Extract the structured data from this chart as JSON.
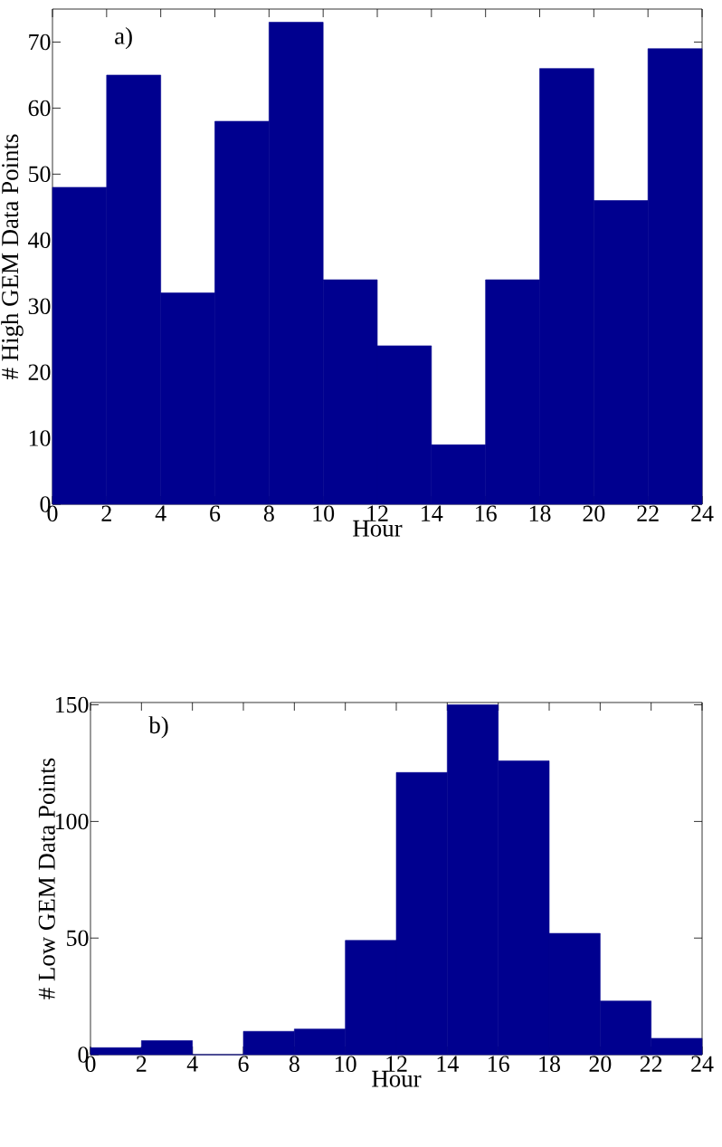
{
  "chart_data": [
    {
      "type": "histogram",
      "xlabel": "Hour",
      "ylabel": "# High GEM Data Points",
      "annotations": [
        "a)"
      ],
      "color": "#00008f",
      "bins": [
        0,
        2,
        4,
        6,
        8,
        10,
        12,
        14,
        16,
        18,
        20,
        22,
        24
      ],
      "values": [
        48,
        65,
        32,
        58,
        73,
        34,
        24,
        9,
        34,
        66,
        46,
        69
      ],
      "xlim": [
        0,
        24
      ],
      "xticks": [
        0,
        2,
        4,
        6,
        8,
        10,
        12,
        14,
        16,
        18,
        20,
        22,
        24
      ],
      "ylim": [
        0,
        75
      ],
      "yticks": [
        0,
        10,
        20,
        30,
        40,
        50,
        60,
        70
      ]
    },
    {
      "type": "histogram",
      "xlabel": "Hour",
      "ylabel": "# Low GEM Data Points",
      "annotations": [
        "b)"
      ],
      "color": "#00008f",
      "bins": [
        0,
        2,
        4,
        6,
        8,
        10,
        12,
        14,
        16,
        18,
        20,
        22,
        24
      ],
      "values": [
        3,
        6,
        0,
        10,
        11,
        49,
        121,
        150,
        126,
        52,
        23,
        7
      ],
      "xlim": [
        0,
        24
      ],
      "xticks": [
        0,
        2,
        4,
        6,
        8,
        10,
        12,
        14,
        16,
        18,
        20,
        22,
        24
      ],
      "ylim": [
        0,
        151
      ],
      "yticks": [
        0,
        50,
        100,
        150
      ]
    }
  ]
}
